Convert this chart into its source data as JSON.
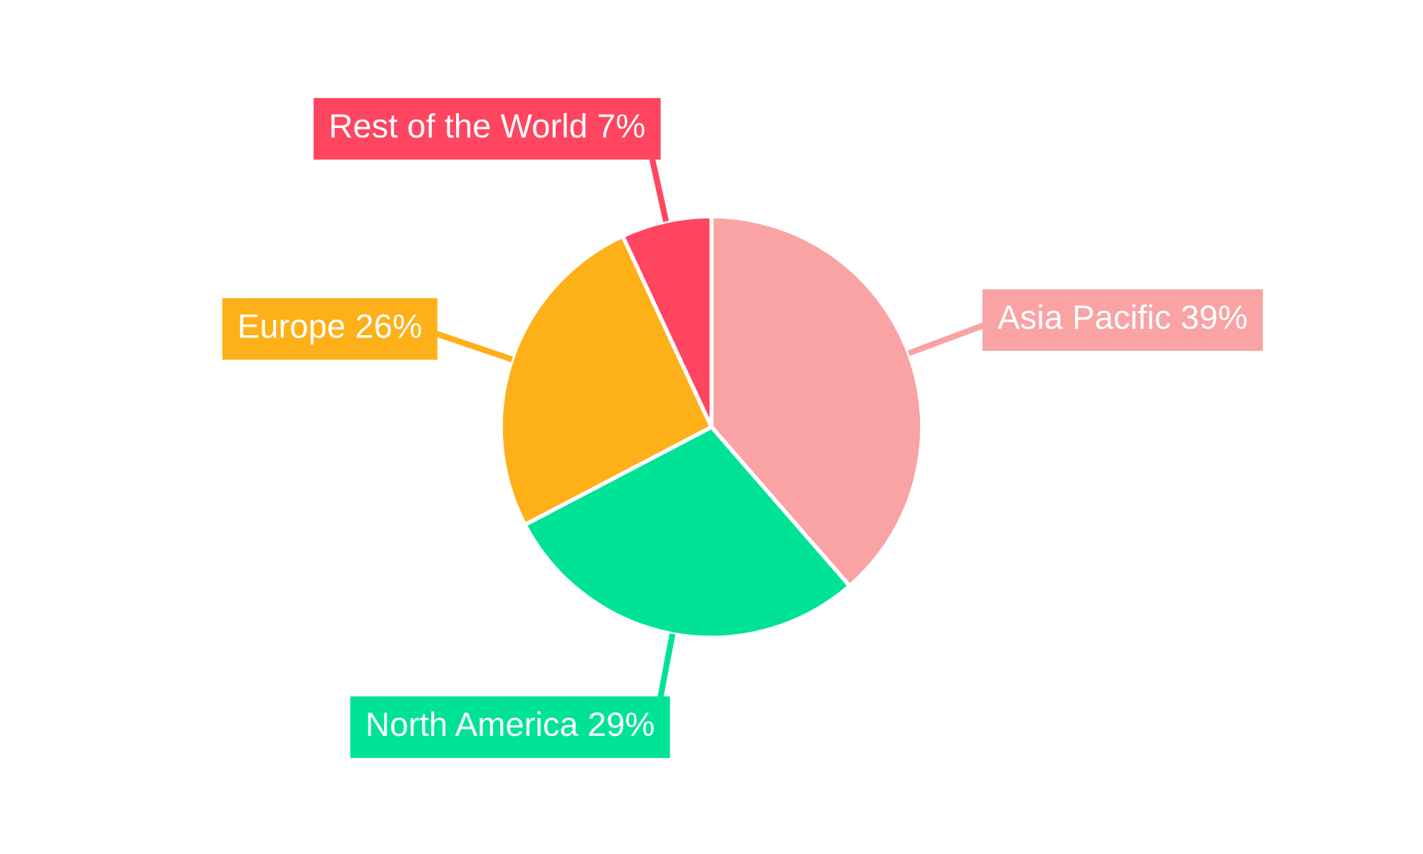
{
  "chart_data": {
    "type": "pie",
    "categories": [
      "Asia Pacific",
      "North America",
      "Europe",
      "Rest of the World"
    ],
    "values": [
      39,
      29,
      26,
      7
    ],
    "value_labels": [
      "39%",
      "29%",
      "26%",
      "7%"
    ],
    "colors": [
      "#f9a3a4",
      "#00e396",
      "#feb019",
      "#ff4560"
    ],
    "legend": false
  }
}
